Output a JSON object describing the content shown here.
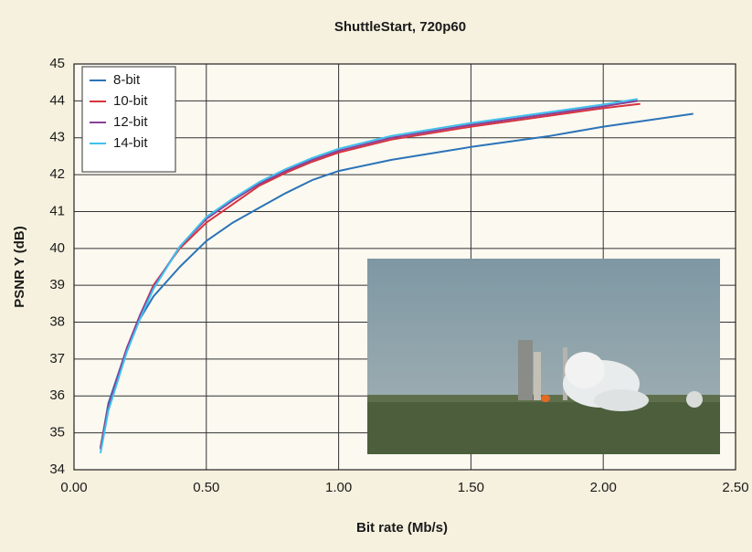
{
  "chart_data": {
    "type": "line",
    "title": "ShuttleStart, 720p60",
    "x_label": "Bit rate (Mb/s)",
    "y_label": "PSNR Y (dB)",
    "xlim": [
      0,
      2.5
    ],
    "ylim": [
      34,
      45
    ],
    "xticks": [
      {
        "value": 0,
        "label": "0.00"
      },
      {
        "value": 0.5,
        "label": "0.50"
      },
      {
        "value": 1,
        "label": "1.00"
      },
      {
        "value": 1.5,
        "label": "1.50"
      },
      {
        "value": 2,
        "label": "2.00"
      },
      {
        "value": 2.5,
        "label": "2.50"
      }
    ],
    "yticks": [
      34,
      35,
      36,
      37,
      38,
      39,
      40,
      41,
      42,
      43,
      44,
      45
    ],
    "grid": true,
    "legend": "upper left",
    "series": [
      {
        "name": "8-bit",
        "color": "#2b73b8",
        "x": [
          0.1,
          0.13,
          0.2,
          0.25,
          0.3,
          0.4,
          0.5,
          0.6,
          0.7,
          0.8,
          0.9,
          1.0,
          1.2,
          1.5,
          1.8,
          2.0,
          2.34
        ],
        "values": [
          34.6,
          35.8,
          37.3,
          38.1,
          38.7,
          39.5,
          40.2,
          40.7,
          41.1,
          41.5,
          41.85,
          42.1,
          42.4,
          42.75,
          43.05,
          43.3,
          43.65
        ]
      },
      {
        "name": "10-bit",
        "color": "#d6343f",
        "x": [
          0.1,
          0.13,
          0.2,
          0.25,
          0.3,
          0.4,
          0.5,
          0.6,
          0.7,
          0.8,
          0.9,
          1.0,
          1.2,
          1.5,
          1.8,
          2.0,
          2.14
        ],
        "values": [
          34.6,
          35.7,
          37.3,
          38.2,
          39.0,
          40.0,
          40.7,
          41.2,
          41.7,
          42.05,
          42.35,
          42.6,
          42.95,
          43.3,
          43.6,
          43.8,
          43.92
        ]
      },
      {
        "name": "12-bit",
        "color": "#8a3f96",
        "x": [
          0.1,
          0.13,
          0.2,
          0.25,
          0.3,
          0.4,
          0.5,
          0.6,
          0.7,
          0.8,
          0.9,
          1.0,
          1.2,
          1.5,
          1.8,
          2.0,
          2.13
        ],
        "values": [
          34.55,
          35.7,
          37.3,
          38.2,
          38.95,
          40.05,
          40.8,
          41.3,
          41.75,
          42.1,
          42.4,
          42.65,
          43.0,
          43.35,
          43.65,
          43.85,
          44.0
        ]
      },
      {
        "name": "14-bit",
        "color": "#3fc0ef",
        "x": [
          0.1,
          0.13,
          0.2,
          0.25,
          0.3,
          0.4,
          0.5,
          0.6,
          0.7,
          0.8,
          0.9,
          1.0,
          1.2,
          1.5,
          1.8,
          2.0,
          2.13
        ],
        "values": [
          34.45,
          35.6,
          37.2,
          38.1,
          38.9,
          40.05,
          40.85,
          41.35,
          41.8,
          42.15,
          42.45,
          42.7,
          43.05,
          43.4,
          43.7,
          43.9,
          44.05
        ]
      }
    ]
  }
}
